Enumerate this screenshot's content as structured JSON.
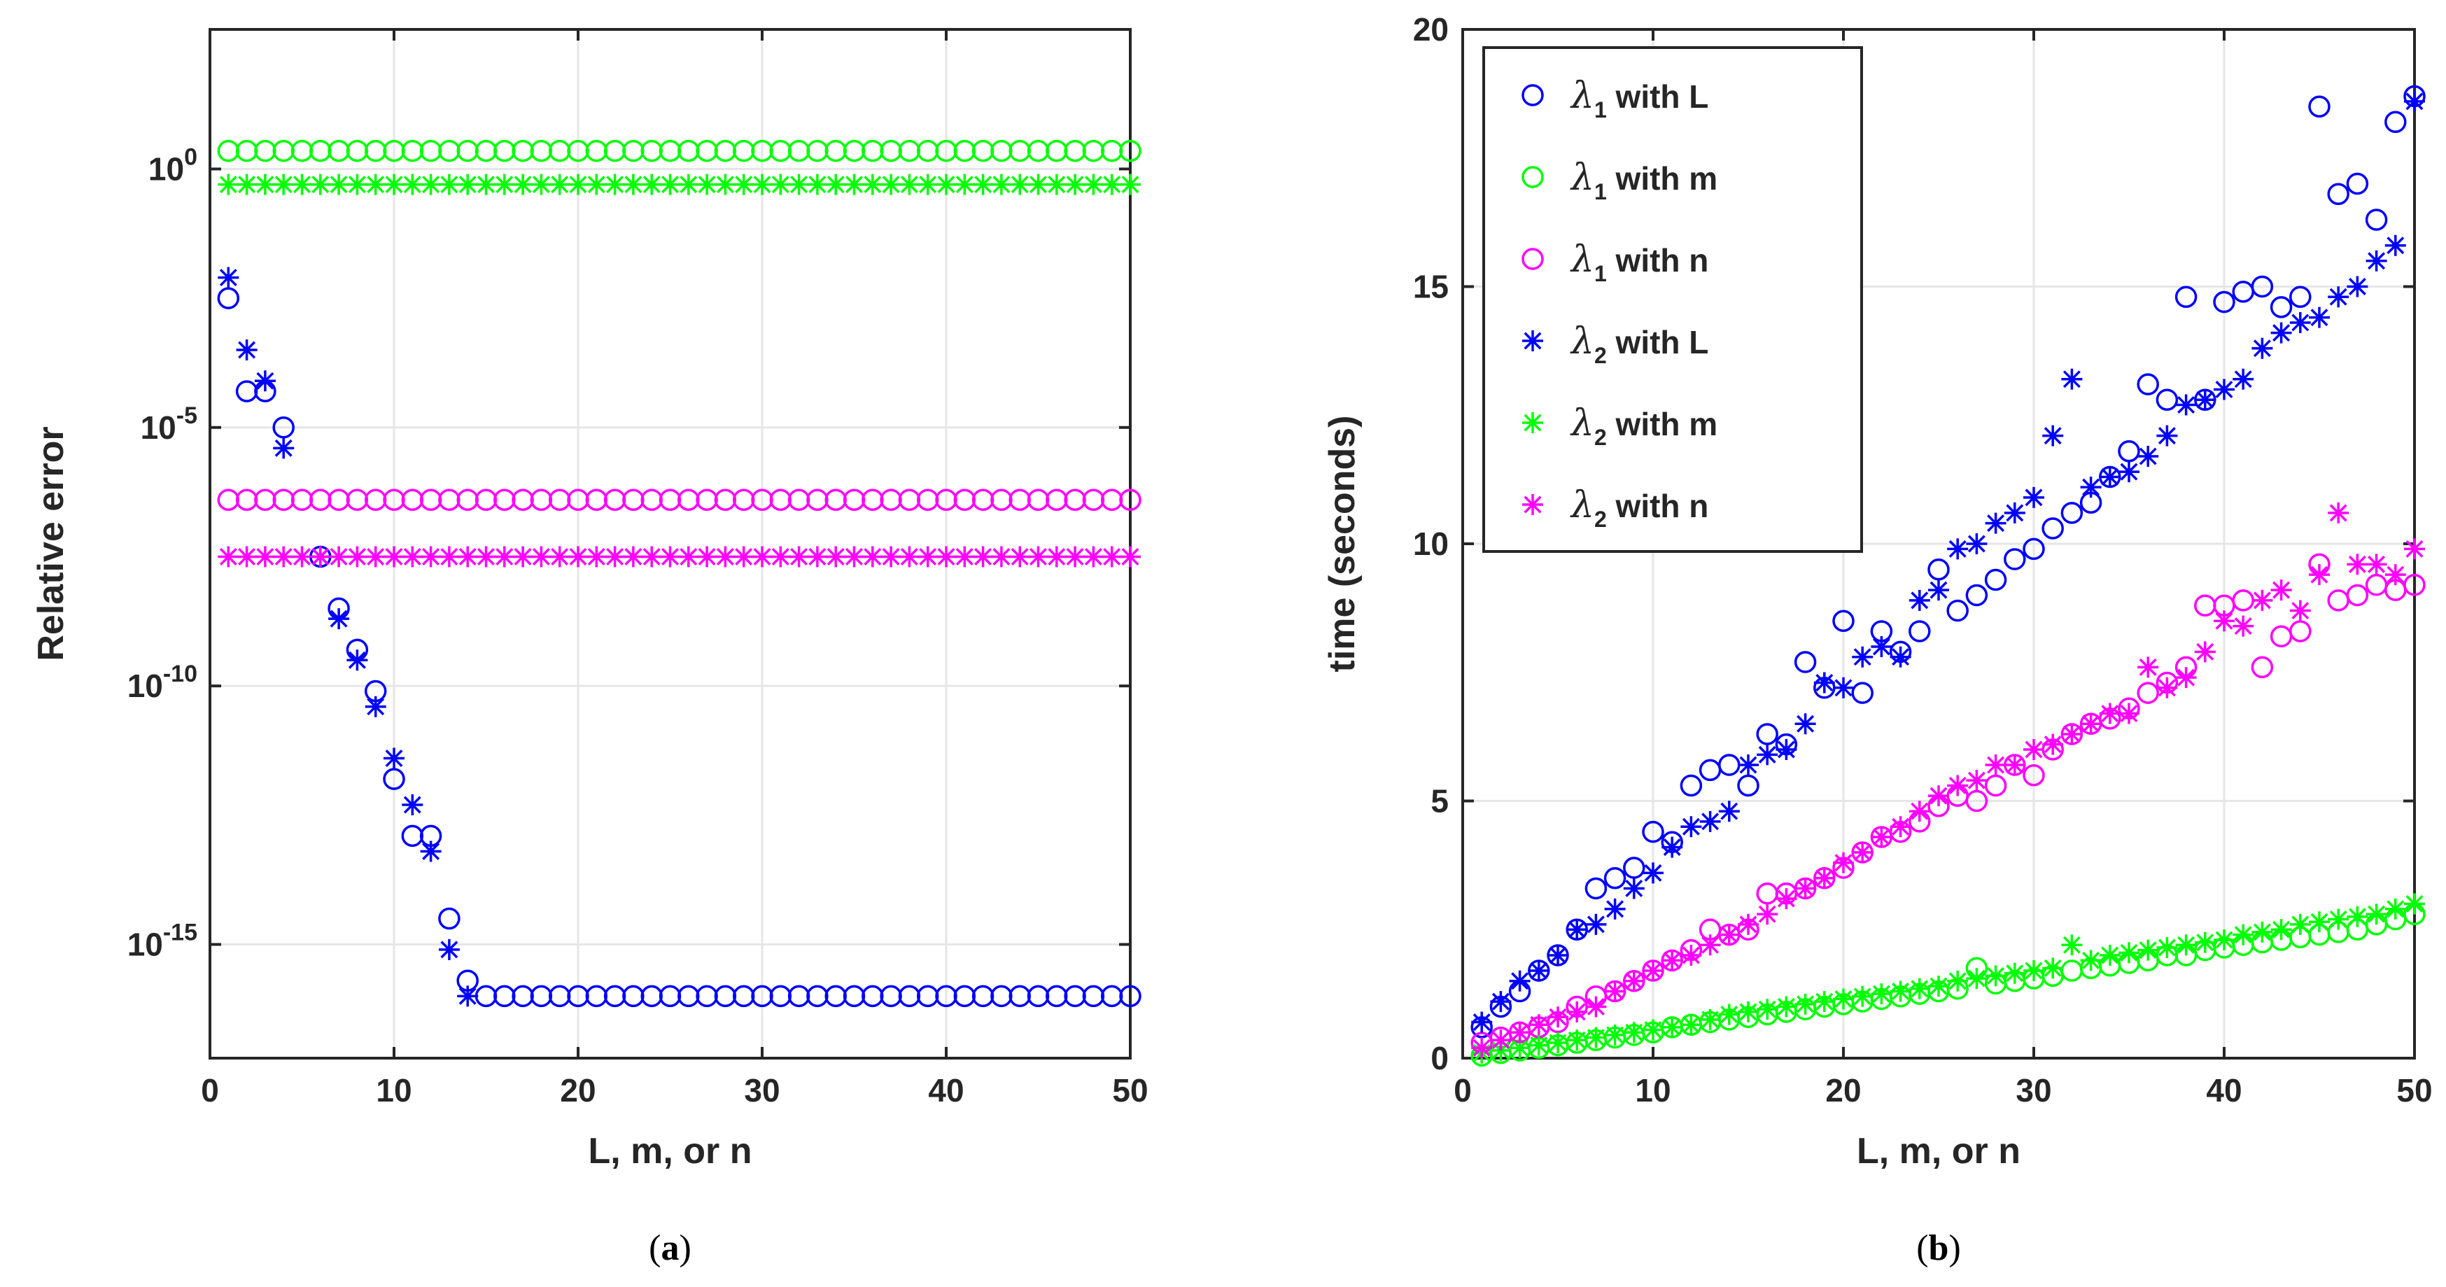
{
  "chart_data": [
    {
      "type": "scatter",
      "panel": "a",
      "caption": "a",
      "xlabel": "L, m, or n",
      "ylabel": "Relative error",
      "yscale": "log",
      "xlim": [
        0,
        50
      ],
      "xticks": [
        0,
        10,
        20,
        30,
        40,
        50
      ],
      "ylim_exp": [
        -17.2,
        2.7
      ],
      "ytick_exps": [
        0,
        -5,
        -10,
        -15
      ],
      "ytick_base": "10",
      "grid": true,
      "series": [
        {
          "name": "λ1 with L",
          "marker": "circle",
          "color": "#0000ff",
          "x": [
            1,
            2,
            3,
            4,
            6,
            7,
            8,
            9,
            10,
            11,
            12,
            13,
            14,
            15,
            16,
            17,
            18,
            19,
            20,
            21,
            22,
            23,
            24,
            25,
            26,
            27,
            28,
            29,
            30,
            31,
            32,
            33,
            34,
            35,
            36,
            37,
            38,
            39,
            40,
            41,
            42,
            43,
            44,
            45,
            46,
            47,
            48,
            49,
            50
          ],
          "log10": [
            -2.5,
            -4.3,
            -4.3,
            -5.0,
            -7.5,
            -8.5,
            -9.3,
            -10.1,
            -11.8,
            -12.9,
            -12.9,
            -14.5,
            -15.7,
            -16.0,
            -16.0,
            -16.0,
            -16.0,
            -16.0,
            -16.0,
            -16.0,
            -16.0,
            -16.0,
            -16.0,
            -16.0,
            -16.0,
            -16.0,
            -16.0,
            -16.0,
            -16.0,
            -16.0,
            -16.0,
            -16.0,
            -16.0,
            -16.0,
            -16.0,
            -16.0,
            -16.0,
            -16.0,
            -16.0,
            -16.0,
            -16.0,
            -16.0,
            -16.0,
            -16.0,
            -16.0,
            -16.0,
            -16.0,
            -16.0,
            -16.0
          ]
        },
        {
          "name": "λ2 with L",
          "marker": "asterisk",
          "color": "#0000ff",
          "x": [
            1,
            2,
            3,
            4,
            6,
            7,
            8,
            9,
            10,
            11,
            12,
            13,
            14
          ],
          "log10": [
            -2.1,
            -3.5,
            -4.1,
            -5.4,
            -7.5,
            -8.7,
            -9.5,
            -10.4,
            -11.4,
            -12.3,
            -13.2,
            -15.1,
            -16.0
          ]
        },
        {
          "name": "λ1 with m",
          "marker": "circle",
          "color": "#00ff00",
          "x_range": [
            1,
            50
          ],
          "log10_constant": 0.35
        },
        {
          "name": "λ2 with m",
          "marker": "asterisk",
          "color": "#00ff00",
          "x_range": [
            1,
            50
          ],
          "log10_constant": -0.3
        },
        {
          "name": "λ1 with n",
          "marker": "circle",
          "color": "#ff00ff",
          "x_range": [
            1,
            50
          ],
          "log10_constant": -6.4
        },
        {
          "name": "λ2 with n",
          "marker": "asterisk",
          "color": "#ff00ff",
          "x_range": [
            1,
            50
          ],
          "log10_constant": -7.5
        }
      ]
    },
    {
      "type": "scatter",
      "panel": "b",
      "caption": "b",
      "xlabel": "L, m, or n",
      "ylabel": "time (seconds)",
      "xlim": [
        0,
        50
      ],
      "ylim": [
        0,
        20
      ],
      "xticks": [
        0,
        10,
        20,
        30,
        40,
        50
      ],
      "yticks": [
        0,
        5,
        10,
        15,
        20
      ],
      "grid": true,
      "legend_position": "top-left",
      "legend": [
        {
          "sym": "λ",
          "sub": "1",
          "text": " with L",
          "marker": "circle",
          "color": "#0000ff"
        },
        {
          "sym": "λ",
          "sub": "1",
          "text": " with m",
          "marker": "circle",
          "color": "#00ff00"
        },
        {
          "sym": "λ",
          "sub": "1",
          "text": " with n",
          "marker": "circle",
          "color": "#ff00ff"
        },
        {
          "sym": "λ",
          "sub": "2",
          "text": " with L",
          "marker": "asterisk",
          "color": "#0000ff"
        },
        {
          "sym": "λ",
          "sub": "2",
          "text": " with m",
          "marker": "asterisk",
          "color": "#00ff00"
        },
        {
          "sym": "λ",
          "sub": "2",
          "text": " with n",
          "marker": "asterisk",
          "color": "#ff00ff"
        }
      ],
      "series": [
        {
          "name": "λ1 with L",
          "marker": "circle",
          "color": "#0000ff",
          "y": [
            0.6,
            1.0,
            1.3,
            1.7,
            2.0,
            2.5,
            3.3,
            3.5,
            3.7,
            4.4,
            4.2,
            5.3,
            5.6,
            5.7,
            5.3,
            6.3,
            6.1,
            7.7,
            7.2,
            8.5,
            7.1,
            8.3,
            7.9,
            8.3,
            9.5,
            8.7,
            9.0,
            9.3,
            9.7,
            9.9,
            10.3,
            10.6,
            10.8,
            11.3,
            11.8,
            13.1,
            12.8,
            14.8,
            12.8,
            14.7,
            14.9,
            15.0,
            14.6,
            14.8,
            18.5,
            16.8,
            17.0,
            16.3,
            18.2,
            18.7
          ]
        },
        {
          "name": "λ1 with m",
          "marker": "circle",
          "color": "#00ff00",
          "y": [
            0.05,
            0.1,
            0.15,
            0.2,
            0.25,
            0.3,
            0.35,
            0.4,
            0.45,
            0.5,
            0.6,
            0.65,
            0.7,
            0.75,
            0.8,
            0.85,
            0.9,
            0.95,
            1.0,
            1.05,
            1.1,
            1.15,
            1.2,
            1.25,
            1.3,
            1.35,
            1.75,
            1.45,
            1.5,
            1.55,
            1.6,
            1.7,
            1.75,
            1.8,
            1.85,
            1.9,
            2.0,
            2.0,
            2.1,
            2.15,
            2.2,
            2.25,
            2.3,
            2.35,
            2.4,
            2.45,
            2.5,
            2.6,
            2.7,
            2.8
          ]
        },
        {
          "name": "λ1 with n",
          "marker": "circle",
          "color": "#ff00ff",
          "y": [
            0.3,
            0.4,
            0.5,
            0.6,
            0.7,
            1.0,
            1.2,
            1.3,
            1.5,
            1.7,
            1.9,
            2.1,
            2.5,
            2.4,
            2.5,
            3.2,
            3.2,
            3.3,
            3.5,
            3.7,
            4.0,
            4.3,
            4.4,
            4.6,
            4.9,
            5.1,
            5.0,
            5.3,
            5.7,
            5.5,
            6.0,
            6.3,
            6.5,
            6.6,
            6.8,
            7.1,
            7.3,
            7.6,
            8.8,
            8.8,
            8.9,
            7.6,
            8.2,
            8.3,
            9.6,
            8.9,
            9.0,
            9.2,
            9.1,
            9.2
          ]
        },
        {
          "name": "λ2 with L",
          "marker": "asterisk",
          "color": "#0000ff",
          "y": [
            0.7,
            1.1,
            1.5,
            1.7,
            2.0,
            2.5,
            2.6,
            2.9,
            3.3,
            3.6,
            4.1,
            4.5,
            4.6,
            4.8,
            5.7,
            5.9,
            6.0,
            6.5,
            7.3,
            7.2,
            7.8,
            8.0,
            7.8,
            8.9,
            9.1,
            9.9,
            10.0,
            10.4,
            10.6,
            10.9,
            12.1,
            13.2,
            11.1,
            11.3,
            11.4,
            11.7,
            12.1,
            12.7,
            12.8,
            13.0,
            13.2,
            13.8,
            14.1,
            14.3,
            14.4,
            14.8,
            15.0,
            15.5,
            15.8,
            18.6
          ]
        },
        {
          "name": "λ2 with m",
          "marker": "asterisk",
          "color": "#00ff00",
          "y": [
            0.1,
            0.15,
            0.2,
            0.25,
            0.3,
            0.35,
            0.4,
            0.45,
            0.5,
            0.55,
            0.6,
            0.65,
            0.75,
            0.85,
            0.9,
            0.95,
            1.0,
            1.05,
            1.1,
            1.15,
            1.2,
            1.25,
            1.3,
            1.35,
            1.4,
            1.5,
            1.55,
            1.6,
            1.65,
            1.7,
            1.75,
            2.2,
            1.9,
            2.0,
            2.05,
            2.1,
            2.15,
            2.2,
            2.25,
            2.3,
            2.4,
            2.45,
            2.5,
            2.6,
            2.65,
            2.7,
            2.75,
            2.8,
            2.9,
            3.0
          ]
        },
        {
          "name": "λ2 with n",
          "marker": "asterisk",
          "color": "#ff00ff",
          "y": [
            0.2,
            0.35,
            0.5,
            0.65,
            0.8,
            0.9,
            1.0,
            1.3,
            1.5,
            1.7,
            1.9,
            2.0,
            2.2,
            2.4,
            2.6,
            2.8,
            3.1,
            3.3,
            3.5,
            3.8,
            4.0,
            4.3,
            4.5,
            4.8,
            5.1,
            5.3,
            5.4,
            5.7,
            5.7,
            6.0,
            6.1,
            6.3,
            6.5,
            6.7,
            6.7,
            7.6,
            7.2,
            7.4,
            7.9,
            8.5,
            8.4,
            8.9,
            9.1,
            8.7,
            9.4,
            10.6,
            9.6,
            9.6,
            9.4,
            9.9
          ]
        }
      ]
    }
  ]
}
